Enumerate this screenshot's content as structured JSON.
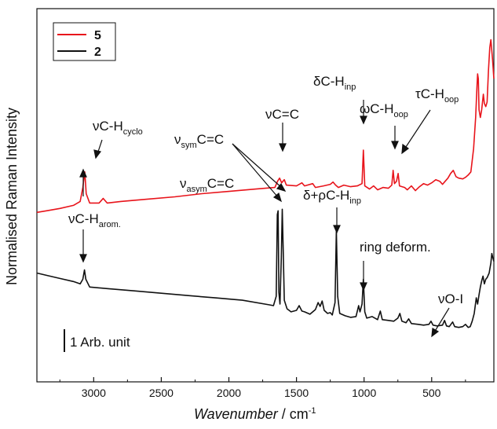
{
  "chart_data": {
    "type": "line",
    "title": "",
    "xlabel": {
      "italic": "Wavenumber",
      "rest": " / cm",
      "sup": "-1"
    },
    "ylabel": "Normalised Raman Intensity",
    "xlim": [
      3420,
      40
    ],
    "x_reversed": true,
    "x_ticks": [
      3000,
      2500,
      2000,
      1500,
      1000,
      500
    ],
    "scale_bar_label": "1 Arb. unit",
    "colors": {
      "red": "#e8141b",
      "black": "#111111"
    },
    "legend": [
      {
        "name": "5",
        "color": "#e8141b"
      },
      {
        "name": "2",
        "color": "#111111"
      }
    ],
    "series": [
      {
        "name": "5",
        "color": "#e8141b",
        "points": [
          [
            3420,
            1.58
          ],
          [
            3350,
            1.6
          ],
          [
            3250,
            1.63
          ],
          [
            3150,
            1.67
          ],
          [
            3100,
            1.72
          ],
          [
            3080,
            1.9
          ],
          [
            3066,
            2.1
          ],
          [
            3055,
            1.82
          ],
          [
            3030,
            1.7
          ],
          [
            2960,
            1.7
          ],
          [
            2930,
            1.76
          ],
          [
            2900,
            1.7
          ],
          [
            2800,
            1.72
          ],
          [
            2600,
            1.75
          ],
          [
            2400,
            1.78
          ],
          [
            2200,
            1.82
          ],
          [
            2000,
            1.85
          ],
          [
            1800,
            1.88
          ],
          [
            1660,
            1.9
          ],
          [
            1640,
            1.98
          ],
          [
            1625,
            2.02
          ],
          [
            1610,
            1.96
          ],
          [
            1590,
            2.0
          ],
          [
            1575,
            1.93
          ],
          [
            1500,
            1.92
          ],
          [
            1460,
            1.96
          ],
          [
            1440,
            1.92
          ],
          [
            1380,
            1.95
          ],
          [
            1360,
            1.9
          ],
          [
            1300,
            1.92
          ],
          [
            1250,
            1.94
          ],
          [
            1230,
            1.97
          ],
          [
            1210,
            1.93
          ],
          [
            1190,
            1.9
          ],
          [
            1150,
            1.93
          ],
          [
            1100,
            1.91
          ],
          [
            1050,
            1.92
          ],
          [
            1015,
            1.95
          ],
          [
            1005,
            2.38
          ],
          [
            995,
            1.92
          ],
          [
            960,
            1.88
          ],
          [
            930,
            1.92
          ],
          [
            900,
            1.87
          ],
          [
            860,
            1.9
          ],
          [
            820,
            1.89
          ],
          [
            795,
            1.93
          ],
          [
            785,
            2.12
          ],
          [
            775,
            1.95
          ],
          [
            760,
            1.98
          ],
          [
            748,
            2.08
          ],
          [
            738,
            1.92
          ],
          [
            700,
            1.9
          ],
          [
            680,
            1.87
          ],
          [
            650,
            1.92
          ],
          [
            620,
            1.86
          ],
          [
            590,
            1.91
          ],
          [
            560,
            1.95
          ],
          [
            530,
            1.93
          ],
          [
            500,
            1.96
          ],
          [
            470,
            2.0
          ],
          [
            440,
            1.98
          ],
          [
            420,
            1.94
          ],
          [
            400,
            1.98
          ],
          [
            380,
            2.02
          ],
          [
            360,
            2.08
          ],
          [
            340,
            2.12
          ],
          [
            320,
            2.04
          ],
          [
            300,
            2.02
          ],
          [
            270,
            2.01
          ],
          [
            250,
            2.03
          ],
          [
            230,
            2.06
          ],
          [
            210,
            2.1
          ],
          [
            190,
            2.4
          ],
          [
            175,
            2.8
          ],
          [
            165,
            3.2
          ],
          [
            160,
            3.36
          ],
          [
            155,
            3.3
          ],
          [
            150,
            2.9
          ],
          [
            140,
            2.8
          ],
          [
            130,
            2.9
          ],
          [
            118,
            3.1
          ],
          [
            110,
            2.98
          ],
          [
            100,
            2.94
          ],
          [
            90,
            3.0
          ],
          [
            80,
            3.4
          ],
          [
            70,
            3.7
          ],
          [
            62,
            3.8
          ],
          [
            50,
            3.55
          ],
          [
            40,
            3.3
          ]
        ]
      },
      {
        "name": "2",
        "color": "#111111",
        "points": [
          [
            3420,
            0.8
          ],
          [
            3350,
            0.77
          ],
          [
            3250,
            0.73
          ],
          [
            3150,
            0.69
          ],
          [
            3100,
            0.66
          ],
          [
            3080,
            0.72
          ],
          [
            3068,
            0.84
          ],
          [
            3058,
            0.72
          ],
          [
            3030,
            0.62
          ],
          [
            2900,
            0.6
          ],
          [
            2700,
            0.57
          ],
          [
            2500,
            0.54
          ],
          [
            2300,
            0.51
          ],
          [
            2100,
            0.48
          ],
          [
            1900,
            0.45
          ],
          [
            1700,
            0.39
          ],
          [
            1670,
            0.38
          ],
          [
            1650,
            0.5
          ],
          [
            1642,
            1.55
          ],
          [
            1636,
            1.6
          ],
          [
            1630,
            0.55
          ],
          [
            1622,
            0.4
          ],
          [
            1612,
            1.0
          ],
          [
            1605,
            1.62
          ],
          [
            1598,
            1.1
          ],
          [
            1590,
            0.45
          ],
          [
            1570,
            0.34
          ],
          [
            1540,
            0.3
          ],
          [
            1500,
            0.32
          ],
          [
            1480,
            0.38
          ],
          [
            1460,
            0.31
          ],
          [
            1440,
            0.3
          ],
          [
            1400,
            0.27
          ],
          [
            1360,
            0.33
          ],
          [
            1340,
            0.42
          ],
          [
            1325,
            0.37
          ],
          [
            1310,
            0.44
          ],
          [
            1295,
            0.32
          ],
          [
            1270,
            0.28
          ],
          [
            1250,
            0.29
          ],
          [
            1235,
            0.26
          ],
          [
            1215,
            0.42
          ],
          [
            1205,
            1.35
          ],
          [
            1195,
            0.5
          ],
          [
            1180,
            0.28
          ],
          [
            1140,
            0.25
          ],
          [
            1100,
            0.23
          ],
          [
            1060,
            0.24
          ],
          [
            1040,
            0.38
          ],
          [
            1030,
            0.3
          ],
          [
            1015,
            0.4
          ],
          [
            1005,
            0.72
          ],
          [
            995,
            0.3
          ],
          [
            980,
            0.22
          ],
          [
            940,
            0.24
          ],
          [
            900,
            0.2
          ],
          [
            880,
            0.31
          ],
          [
            865,
            0.2
          ],
          [
            820,
            0.19
          ],
          [
            780,
            0.18
          ],
          [
            750,
            0.22
          ],
          [
            735,
            0.28
          ],
          [
            720,
            0.18
          ],
          [
            690,
            0.16
          ],
          [
            670,
            0.21
          ],
          [
            650,
            0.15
          ],
          [
            600,
            0.14
          ],
          [
            560,
            0.13
          ],
          [
            520,
            0.14
          ],
          [
            505,
            0.18
          ],
          [
            490,
            0.13
          ],
          [
            460,
            0.12
          ],
          [
            420,
            0.13
          ],
          [
            405,
            0.19
          ],
          [
            390,
            0.12
          ],
          [
            370,
            0.11
          ],
          [
            345,
            0.17
          ],
          [
            330,
            0.11
          ],
          [
            300,
            0.1
          ],
          [
            270,
            0.11
          ],
          [
            250,
            0.14
          ],
          [
            230,
            0.1
          ],
          [
            215,
            0.11
          ],
          [
            200,
            0.18
          ],
          [
            185,
            0.28
          ],
          [
            170,
            0.48
          ],
          [
            160,
            0.4
          ],
          [
            150,
            0.52
          ],
          [
            140,
            0.62
          ],
          [
            130,
            0.7
          ],
          [
            120,
            0.76
          ],
          [
            110,
            0.66
          ],
          [
            100,
            0.72
          ],
          [
            90,
            0.74
          ],
          [
            75,
            0.8
          ],
          [
            62,
            0.93
          ],
          [
            55,
            1.05
          ],
          [
            48,
            1.0
          ],
          [
            40,
            0.95
          ]
        ]
      }
    ],
    "annotations": [
      {
        "id": "a1",
        "base": "ν",
        "body": "C-H",
        "sub": "cyclo"
      },
      {
        "id": "a2",
        "base": "ν",
        "body": "C=C",
        "sub": ""
      },
      {
        "id": "a3",
        "base": "δ",
        "body": "C-H",
        "sub": "inp"
      },
      {
        "id": "a4",
        "base": "ω",
        "body": "C-H",
        "sub": "oop"
      },
      {
        "id": "a5",
        "base": "τ",
        "body": "C-H",
        "sub": "oop"
      },
      {
        "id": "a6",
        "base": "ν",
        "body": "C-H",
        "sub": "arom."
      },
      {
        "id": "a7",
        "base": "ν",
        "sub_first": "sym",
        "body": "C=C"
      },
      {
        "id": "a8",
        "base": "ν",
        "sub_first": "asym",
        "body": "C=C"
      },
      {
        "id": "a9",
        "base": "δ+ρ",
        "body": "C-H",
        "sub": "inp"
      },
      {
        "id": "a10",
        "text": "ring deform."
      },
      {
        "id": "a11",
        "base": "ν",
        "body": "O-I",
        "sub": ""
      }
    ]
  }
}
